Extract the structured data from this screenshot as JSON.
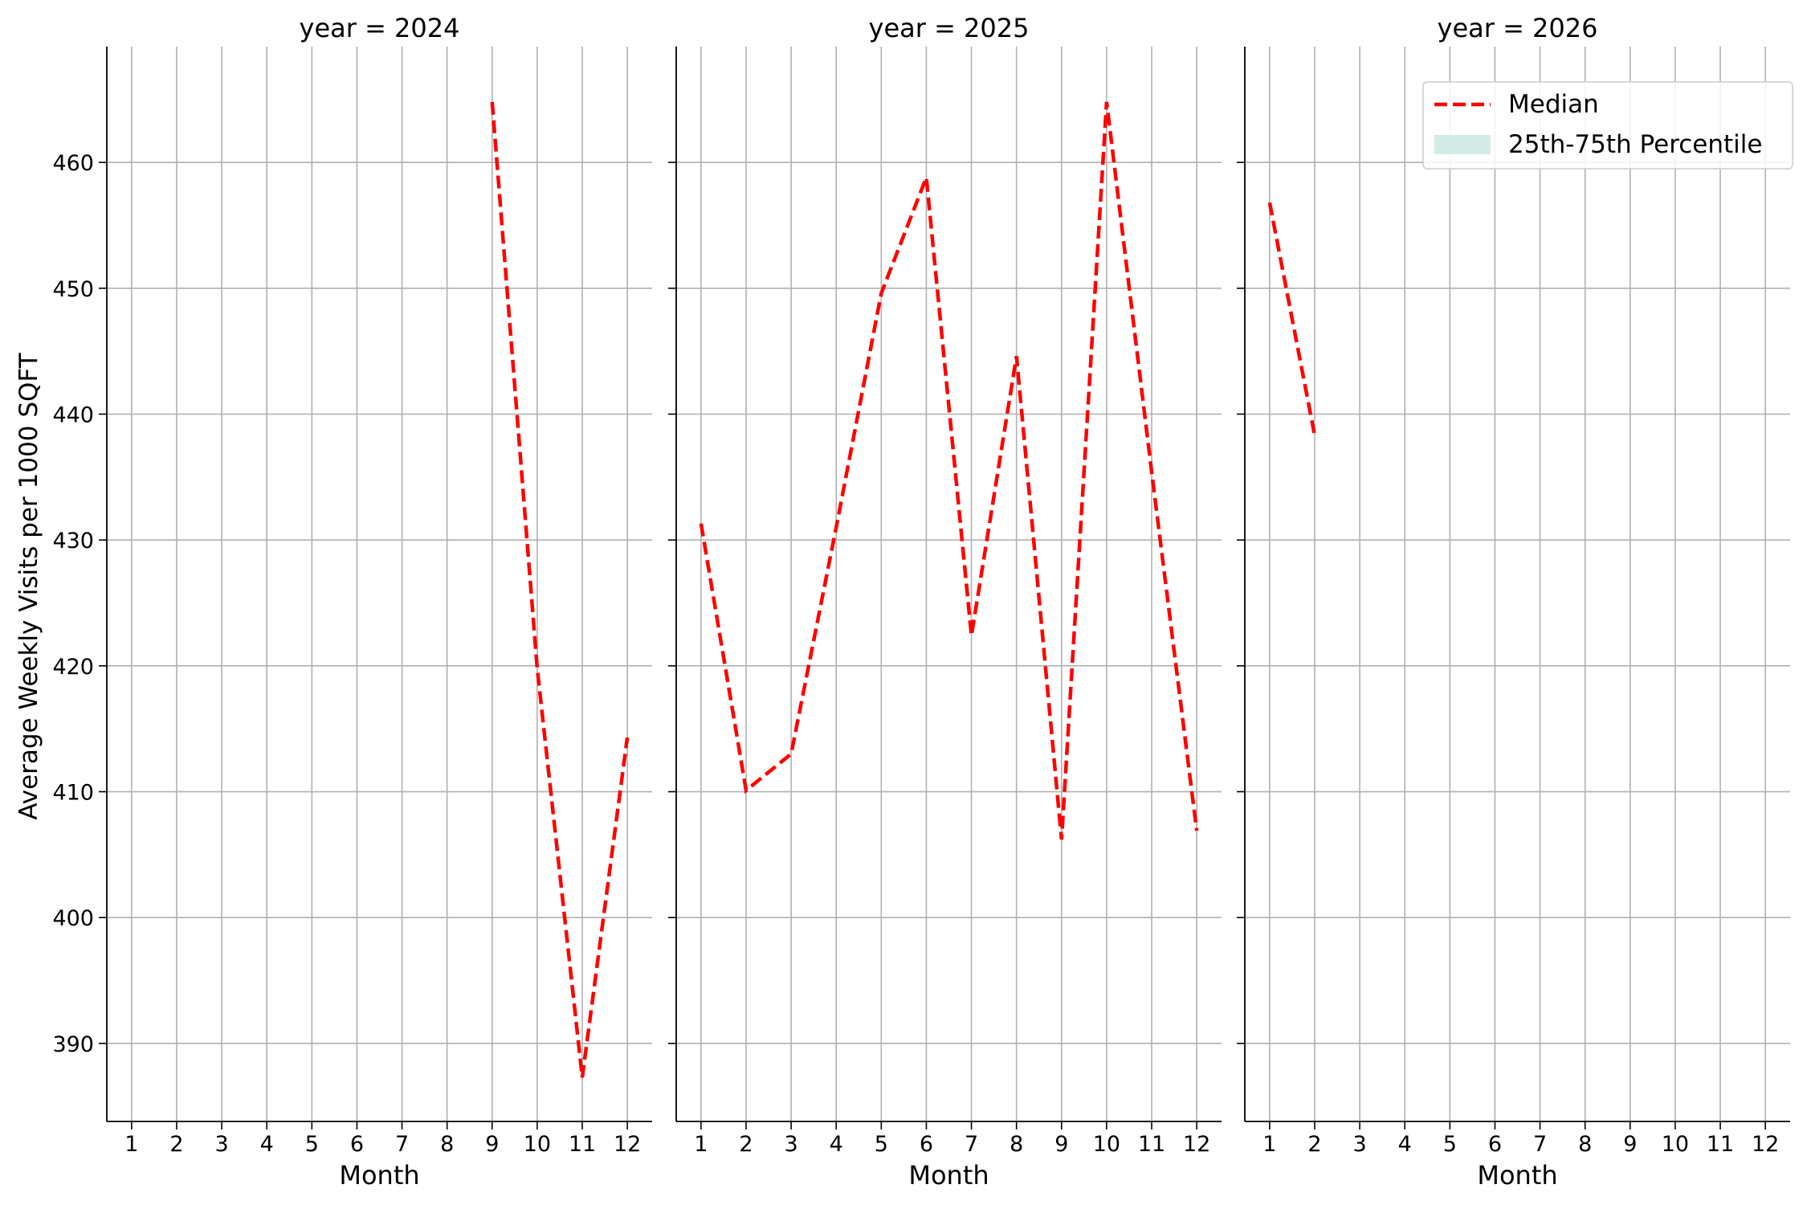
{
  "chart_data": {
    "type": "line",
    "ylabel": "Average Weekly Visits per 1000 SQFT",
    "ylim": [
      383.8,
      469.2
    ],
    "yticks": [
      390,
      400,
      410,
      420,
      430,
      440,
      450,
      460
    ],
    "xticks": [
      1,
      2,
      3,
      4,
      5,
      6,
      7,
      8,
      9,
      10,
      11,
      12
    ],
    "xlim": [
      0.45,
      12.55
    ],
    "grid": true,
    "legend": {
      "placement": "top-right",
      "entries": [
        {
          "label": "Median",
          "kind": "dashed-line",
          "color": "#ff0000"
        },
        {
          "label": "25th-75th Percentile",
          "kind": "band",
          "color": "#d5ece6"
        }
      ]
    },
    "facets": [
      {
        "title": "year = 2024",
        "xlabel": "Month",
        "series": [
          {
            "name": "Median",
            "x": [
              9,
              10,
              11,
              12
            ],
            "y": [
              464.8,
              419.8,
              387.3,
              414.3
            ]
          }
        ]
      },
      {
        "title": "year = 2025",
        "xlabel": "Month",
        "series": [
          {
            "name": "Median",
            "x": [
              1,
              2,
              3,
              4,
              5,
              6,
              7,
              8,
              9,
              10,
              11,
              12
            ],
            "y": [
              431.3,
              410.1,
              413.0,
              431.0,
              449.6,
              458.8,
              422.4,
              444.6,
              406.2,
              464.8,
              435.4,
              406.9
            ]
          }
        ]
      },
      {
        "title": "year = 2026",
        "xlabel": "Month",
        "series": [
          {
            "name": "Median",
            "x": [
              1,
              2
            ],
            "y": [
              456.8,
              438.3
            ]
          }
        ]
      }
    ],
    "colors": {
      "median": "#ff0000",
      "band": "#d5ece6",
      "grid": "#b0b0b0",
      "axis": "#000000"
    }
  }
}
